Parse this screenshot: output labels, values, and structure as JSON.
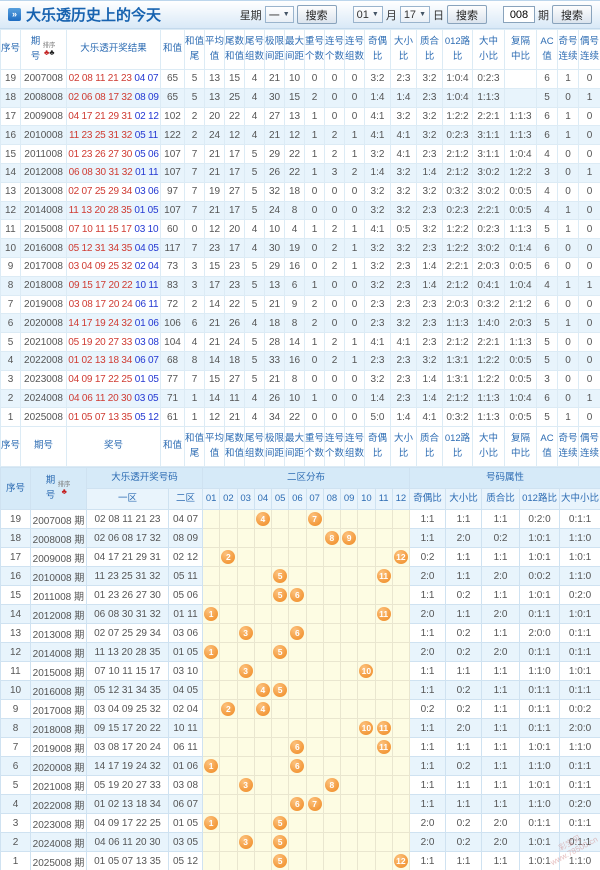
{
  "titlebar": {
    "icon": "»",
    "title": "大乐透历史上的今天",
    "week_label": "星期",
    "week_value": "一",
    "search_label": "搜索",
    "month_value": "01",
    "month_label": "月",
    "day_value": "17",
    "day_label": "日",
    "issue_value": "008",
    "issue_label": "期"
  },
  "table1": {
    "sort": {
      "label": "排序",
      "suits": [
        "♣",
        "♣"
      ]
    },
    "headers": [
      "序号",
      "期\n号",
      "大乐透开奖结果",
      "和值",
      "和值\n尾",
      "平均\n值",
      "尾数\n和值",
      "尾号\n组数",
      "极限\n间距",
      "最大\n间距",
      "重号\n个数",
      "连号\n个数",
      "连号\n组数",
      "奇偶\n比",
      "大小\n比",
      "质合\n比",
      "012路\n比",
      "大中\n小比",
      "复隔\n中比",
      "AC值",
      "奇号\n连续",
      "偶号\n连续"
    ],
    "footer_headers": [
      "序号",
      "期号",
      "奖号",
      "和值",
      "和值\n尾",
      "平均\n值",
      "尾数\n和值",
      "尾号\n组数",
      "极限\n间距",
      "最大\n间距",
      "重号\n个数",
      "连号\n个数",
      "连号\n组数",
      "奇偶\n比",
      "大小\n比",
      "质合\n比",
      "012路\n比",
      "大中\n小比",
      "复隔\n中比",
      "AC值",
      "奇号\n连续",
      "偶号\n连续"
    ],
    "rows": [
      {
        "seq": "19",
        "issue": "2007008",
        "front": "02 08 11 21 23",
        "back": "04 07",
        "vals": [
          "65",
          "5",
          "13",
          "15",
          "4",
          "21",
          "10",
          "0",
          "0",
          "0",
          "3:2",
          "2:3",
          "3:2",
          "1:0:4",
          "0:2:3",
          "",
          "6",
          "1",
          "0"
        ]
      },
      {
        "seq": "18",
        "issue": "2008008",
        "front": "02 06 08 17 32",
        "back": "08 09",
        "vals": [
          "65",
          "5",
          "13",
          "25",
          "4",
          "30",
          "15",
          "2",
          "0",
          "0",
          "1:4",
          "1:4",
          "2:3",
          "1:0:4",
          "1:1:3",
          "",
          "5",
          "0",
          "1"
        ]
      },
      {
        "seq": "17",
        "issue": "2009008",
        "front": "04 17 21 29 31",
        "back": "02 12",
        "vals": [
          "102",
          "2",
          "20",
          "22",
          "4",
          "27",
          "13",
          "1",
          "0",
          "0",
          "4:1",
          "3:2",
          "3:2",
          "1:2:2",
          "2:2:1",
          "1:1:3",
          "6",
          "1",
          "0"
        ]
      },
      {
        "seq": "16",
        "issue": "2010008",
        "front": "11 23 25 31 32",
        "back": "05 11",
        "vals": [
          "122",
          "2",
          "24",
          "12",
          "4",
          "21",
          "12",
          "1",
          "2",
          "1",
          "4:1",
          "4:1",
          "3:2",
          "0:2:3",
          "3:1:1",
          "1:1:3",
          "6",
          "1",
          "0"
        ]
      },
      {
        "seq": "15",
        "issue": "2011008",
        "front": "01 23 26 27 30",
        "back": "05 06",
        "vals": [
          "107",
          "7",
          "21",
          "17",
          "5",
          "29",
          "22",
          "1",
          "2",
          "1",
          "3:2",
          "4:1",
          "2:3",
          "2:1:2",
          "3:1:1",
          "1:0:4",
          "4",
          "0",
          "0"
        ]
      },
      {
        "seq": "14",
        "issue": "2012008",
        "front": "06 08 30 31 32",
        "back": "01 11",
        "vals": [
          "107",
          "7",
          "21",
          "17",
          "5",
          "26",
          "22",
          "1",
          "3",
          "2",
          "1:4",
          "3:2",
          "1:4",
          "2:1:2",
          "3:0:2",
          "1:2:2",
          "3",
          "0",
          "1"
        ]
      },
      {
        "seq": "13",
        "issue": "2013008",
        "front": "02 07 25 29 34",
        "back": "03 06",
        "vals": [
          "97",
          "7",
          "19",
          "27",
          "5",
          "32",
          "18",
          "0",
          "0",
          "0",
          "3:2",
          "3:2",
          "3:2",
          "0:3:2",
          "3:0:2",
          "0:0:5",
          "4",
          "0",
          "0"
        ]
      },
      {
        "seq": "12",
        "issue": "2014008",
        "front": "11 13 20 28 35",
        "back": "01 05",
        "vals": [
          "107",
          "7",
          "21",
          "17",
          "5",
          "24",
          "8",
          "0",
          "0",
          "0",
          "3:2",
          "3:2",
          "2:3",
          "0:2:3",
          "2:2:1",
          "0:0:5",
          "4",
          "1",
          "0"
        ]
      },
      {
        "seq": "11",
        "issue": "2015008",
        "front": "07 10 11 15 17",
        "back": "03 10",
        "vals": [
          "60",
          "0",
          "12",
          "20",
          "4",
          "10",
          "4",
          "1",
          "2",
          "1",
          "4:1",
          "0:5",
          "3:2",
          "1:2:2",
          "0:2:3",
          "1:1:3",
          "5",
          "1",
          "0"
        ]
      },
      {
        "seq": "10",
        "issue": "2016008",
        "front": "05 12 31 34 35",
        "back": "04 05",
        "vals": [
          "117",
          "7",
          "23",
          "17",
          "4",
          "30",
          "19",
          "0",
          "2",
          "1",
          "3:2",
          "3:2",
          "2:3",
          "1:2:2",
          "3:0:2",
          "0:1:4",
          "6",
          "0",
          "0"
        ]
      },
      {
        "seq": "9",
        "issue": "2017008",
        "front": "03 04 09 25 32",
        "back": "02 04",
        "vals": [
          "73",
          "3",
          "15",
          "23",
          "5",
          "29",
          "16",
          "0",
          "2",
          "1",
          "3:2",
          "2:3",
          "1:4",
          "2:2:1",
          "2:0:3",
          "0:0:5",
          "6",
          "0",
          "0"
        ]
      },
      {
        "seq": "8",
        "issue": "2018008",
        "front": "09 15 17 20 22",
        "back": "10 11",
        "vals": [
          "83",
          "3",
          "17",
          "23",
          "5",
          "13",
          "6",
          "1",
          "0",
          "0",
          "3:2",
          "2:3",
          "1:4",
          "2:1:2",
          "0:4:1",
          "1:0:4",
          "4",
          "1",
          "1"
        ]
      },
      {
        "seq": "7",
        "issue": "2019008",
        "front": "03 08 17 20 24",
        "back": "06 11",
        "vals": [
          "72",
          "2",
          "14",
          "22",
          "5",
          "21",
          "9",
          "2",
          "0",
          "0",
          "2:3",
          "2:3",
          "2:3",
          "2:0:3",
          "0:3:2",
          "2:1:2",
          "6",
          "0",
          "0"
        ]
      },
      {
        "seq": "6",
        "issue": "2020008",
        "front": "14 17 19 24 32",
        "back": "01 06",
        "vals": [
          "106",
          "6",
          "21",
          "26",
          "4",
          "18",
          "8",
          "2",
          "0",
          "0",
          "2:3",
          "3:2",
          "2:3",
          "1:1:3",
          "1:4:0",
          "2:0:3",
          "5",
          "1",
          "0"
        ]
      },
      {
        "seq": "5",
        "issue": "2021008",
        "front": "05 19 20 27 33",
        "back": "03 08",
        "vals": [
          "104",
          "4",
          "21",
          "24",
          "5",
          "28",
          "14",
          "1",
          "2",
          "1",
          "4:1",
          "4:1",
          "2:3",
          "2:1:2",
          "2:2:1",
          "1:1:3",
          "5",
          "0",
          "0"
        ]
      },
      {
        "seq": "4",
        "issue": "2022008",
        "front": "01 02 13 18 34",
        "back": "06 07",
        "vals": [
          "68",
          "8",
          "14",
          "18",
          "5",
          "33",
          "16",
          "0",
          "2",
          "1",
          "2:3",
          "2:3",
          "3:2",
          "1:3:1",
          "1:2:2",
          "0:0:5",
          "5",
          "0",
          "0"
        ]
      },
      {
        "seq": "3",
        "issue": "2023008",
        "front": "04 09 17 22 25",
        "back": "01 05",
        "vals": [
          "77",
          "7",
          "15",
          "27",
          "5",
          "21",
          "8",
          "0",
          "0",
          "0",
          "3:2",
          "2:3",
          "1:4",
          "1:3:1",
          "1:2:2",
          "0:0:5",
          "3",
          "0",
          "0"
        ]
      },
      {
        "seq": "2",
        "issue": "2024008",
        "front": "04 06 11 20 30",
        "back": "03 05",
        "vals": [
          "71",
          "1",
          "14",
          "11",
          "4",
          "26",
          "10",
          "1",
          "0",
          "0",
          "1:4",
          "2:3",
          "1:4",
          "2:1:2",
          "1:1:3",
          "1:0:4",
          "6",
          "0",
          "1"
        ]
      },
      {
        "seq": "1",
        "issue": "2025008",
        "front": "01 05 07 13 35",
        "back": "05 12",
        "vals": [
          "61",
          "1",
          "12",
          "21",
          "4",
          "34",
          "22",
          "0",
          "0",
          "0",
          "5:0",
          "1:4",
          "4:1",
          "0:3:2",
          "1:1:3",
          "0:0:5",
          "5",
          "1",
          "0"
        ]
      }
    ]
  },
  "table2": {
    "sort": {
      "label": "排序",
      "suit": "♣"
    },
    "header": {
      "seq": "序号",
      "issue": "期\n号",
      "group_numbers": "大乐透开奖号码",
      "group_dist": "二区分布",
      "group_attr": "号码属性",
      "zone1": "一区",
      "zone2": "二区",
      "cols": [
        "01",
        "02",
        "03",
        "04",
        "05",
        "06",
        "07",
        "08",
        "09",
        "10",
        "11",
        "12"
      ],
      "attr_cols": [
        "奇偶比",
        "大小比",
        "质合比",
        "012路比",
        "大中小比"
      ]
    },
    "issue_suffix": "期",
    "rows": [
      {
        "seq": "19",
        "issue": "2007008",
        "front": "02 08 11 21 23",
        "back": "04 07",
        "balls": [
          4,
          7
        ],
        "attrs": [
          "1:1",
          "1:1",
          "1:1",
          "0:2:0",
          "0:1:1"
        ]
      },
      {
        "seq": "18",
        "issue": "2008008",
        "front": "02 06 08 17 32",
        "back": "08 09",
        "balls": [
          8,
          9
        ],
        "attrs": [
          "1:1",
          "2:0",
          "0:2",
          "1:0:1",
          "1:1:0"
        ]
      },
      {
        "seq": "17",
        "issue": "2009008",
        "front": "04 17 21 29 31",
        "back": "02 12",
        "balls": [
          2,
          12
        ],
        "attrs": [
          "0:2",
          "1:1",
          "1:1",
          "1:0:1",
          "1:0:1"
        ]
      },
      {
        "seq": "16",
        "issue": "2010008",
        "front": "11 23 25 31 32",
        "back": "05 11",
        "balls": [
          5,
          11
        ],
        "attrs": [
          "2:0",
          "1:1",
          "2:0",
          "0:0:2",
          "1:1:0"
        ]
      },
      {
        "seq": "15",
        "issue": "2011008",
        "front": "01 23 26 27 30",
        "back": "05 06",
        "balls": [
          5,
          6
        ],
        "attrs": [
          "1:1",
          "0:2",
          "1:1",
          "1:0:1",
          "0:2:0"
        ]
      },
      {
        "seq": "14",
        "issue": "2012008",
        "front": "06 08 30 31 32",
        "back": "01 11",
        "balls": [
          1,
          11
        ],
        "attrs": [
          "2:0",
          "1:1",
          "2:0",
          "0:1:1",
          "1:0:1"
        ]
      },
      {
        "seq": "13",
        "issue": "2013008",
        "front": "02 07 25 29 34",
        "back": "03 06",
        "balls": [
          3,
          6
        ],
        "attrs": [
          "1:1",
          "0:2",
          "1:1",
          "2:0:0",
          "0:1:1"
        ]
      },
      {
        "seq": "12",
        "issue": "2014008",
        "front": "11 13 20 28 35",
        "back": "01 05",
        "balls": [
          1,
          5
        ],
        "attrs": [
          "2:0",
          "0:2",
          "2:0",
          "0:1:1",
          "0:1:1"
        ]
      },
      {
        "seq": "11",
        "issue": "2015008",
        "front": "07 10 11 15 17",
        "back": "03 10",
        "balls": [
          3,
          10
        ],
        "attrs": [
          "1:1",
          "1:1",
          "1:1",
          "1:1:0",
          "1:0:1"
        ]
      },
      {
        "seq": "10",
        "issue": "2016008",
        "front": "05 12 31 34 35",
        "back": "04 05",
        "balls": [
          4,
          5
        ],
        "attrs": [
          "1:1",
          "0:2",
          "1:1",
          "0:1:1",
          "0:1:1"
        ]
      },
      {
        "seq": "9",
        "issue": "2017008",
        "front": "03 04 09 25 32",
        "back": "02 04",
        "balls": [
          2,
          4
        ],
        "attrs": [
          "0:2",
          "0:2",
          "1:1",
          "0:1:1",
          "0:0:2"
        ]
      },
      {
        "seq": "8",
        "issue": "2018008",
        "front": "09 15 17 20 22",
        "back": "10 11",
        "balls": [
          10,
          11
        ],
        "attrs": [
          "1:1",
          "2:0",
          "1:1",
          "0:1:1",
          "2:0:0"
        ]
      },
      {
        "seq": "7",
        "issue": "2019008",
        "front": "03 08 17 20 24",
        "back": "06 11",
        "balls": [
          6,
          11
        ],
        "attrs": [
          "1:1",
          "1:1",
          "1:1",
          "1:0:1",
          "1:1:0"
        ]
      },
      {
        "seq": "6",
        "issue": "2020008",
        "front": "14 17 19 24 32",
        "back": "01 06",
        "balls": [
          1,
          6
        ],
        "attrs": [
          "1:1",
          "0:2",
          "1:1",
          "1:1:0",
          "0:1:1"
        ]
      },
      {
        "seq": "5",
        "issue": "2021008",
        "front": "05 19 20 27 33",
        "back": "03 08",
        "balls": [
          3,
          8
        ],
        "attrs": [
          "1:1",
          "1:1",
          "1:1",
          "1:0:1",
          "0:1:1"
        ]
      },
      {
        "seq": "4",
        "issue": "2022008",
        "front": "01 02 13 18 34",
        "back": "06 07",
        "balls": [
          6,
          7
        ],
        "attrs": [
          "1:1",
          "1:1",
          "1:1",
          "1:1:0",
          "0:2:0"
        ]
      },
      {
        "seq": "3",
        "issue": "2023008",
        "front": "04 09 17 22 25",
        "back": "01 05",
        "balls": [
          1,
          5
        ],
        "attrs": [
          "2:0",
          "0:2",
          "2:0",
          "0:1:1",
          "0:1:1"
        ]
      },
      {
        "seq": "2",
        "issue": "2024008",
        "front": "04 06 11 20 30",
        "back": "03 05",
        "balls": [
          3,
          5
        ],
        "attrs": [
          "2:0",
          "0:2",
          "2:0",
          "1:0:1",
          "0:1:1"
        ]
      },
      {
        "seq": "1",
        "issue": "2025008",
        "front": "01 05 07 13 35",
        "back": "05 12",
        "balls": [
          5,
          12
        ],
        "attrs": [
          "1:1",
          "1:1",
          "1:1",
          "1:0:1",
          "1:1:0"
        ]
      }
    ]
  },
  "watermark": {
    "line1": "彩宝贝",
    "line2": "www.78500.cn"
  }
}
